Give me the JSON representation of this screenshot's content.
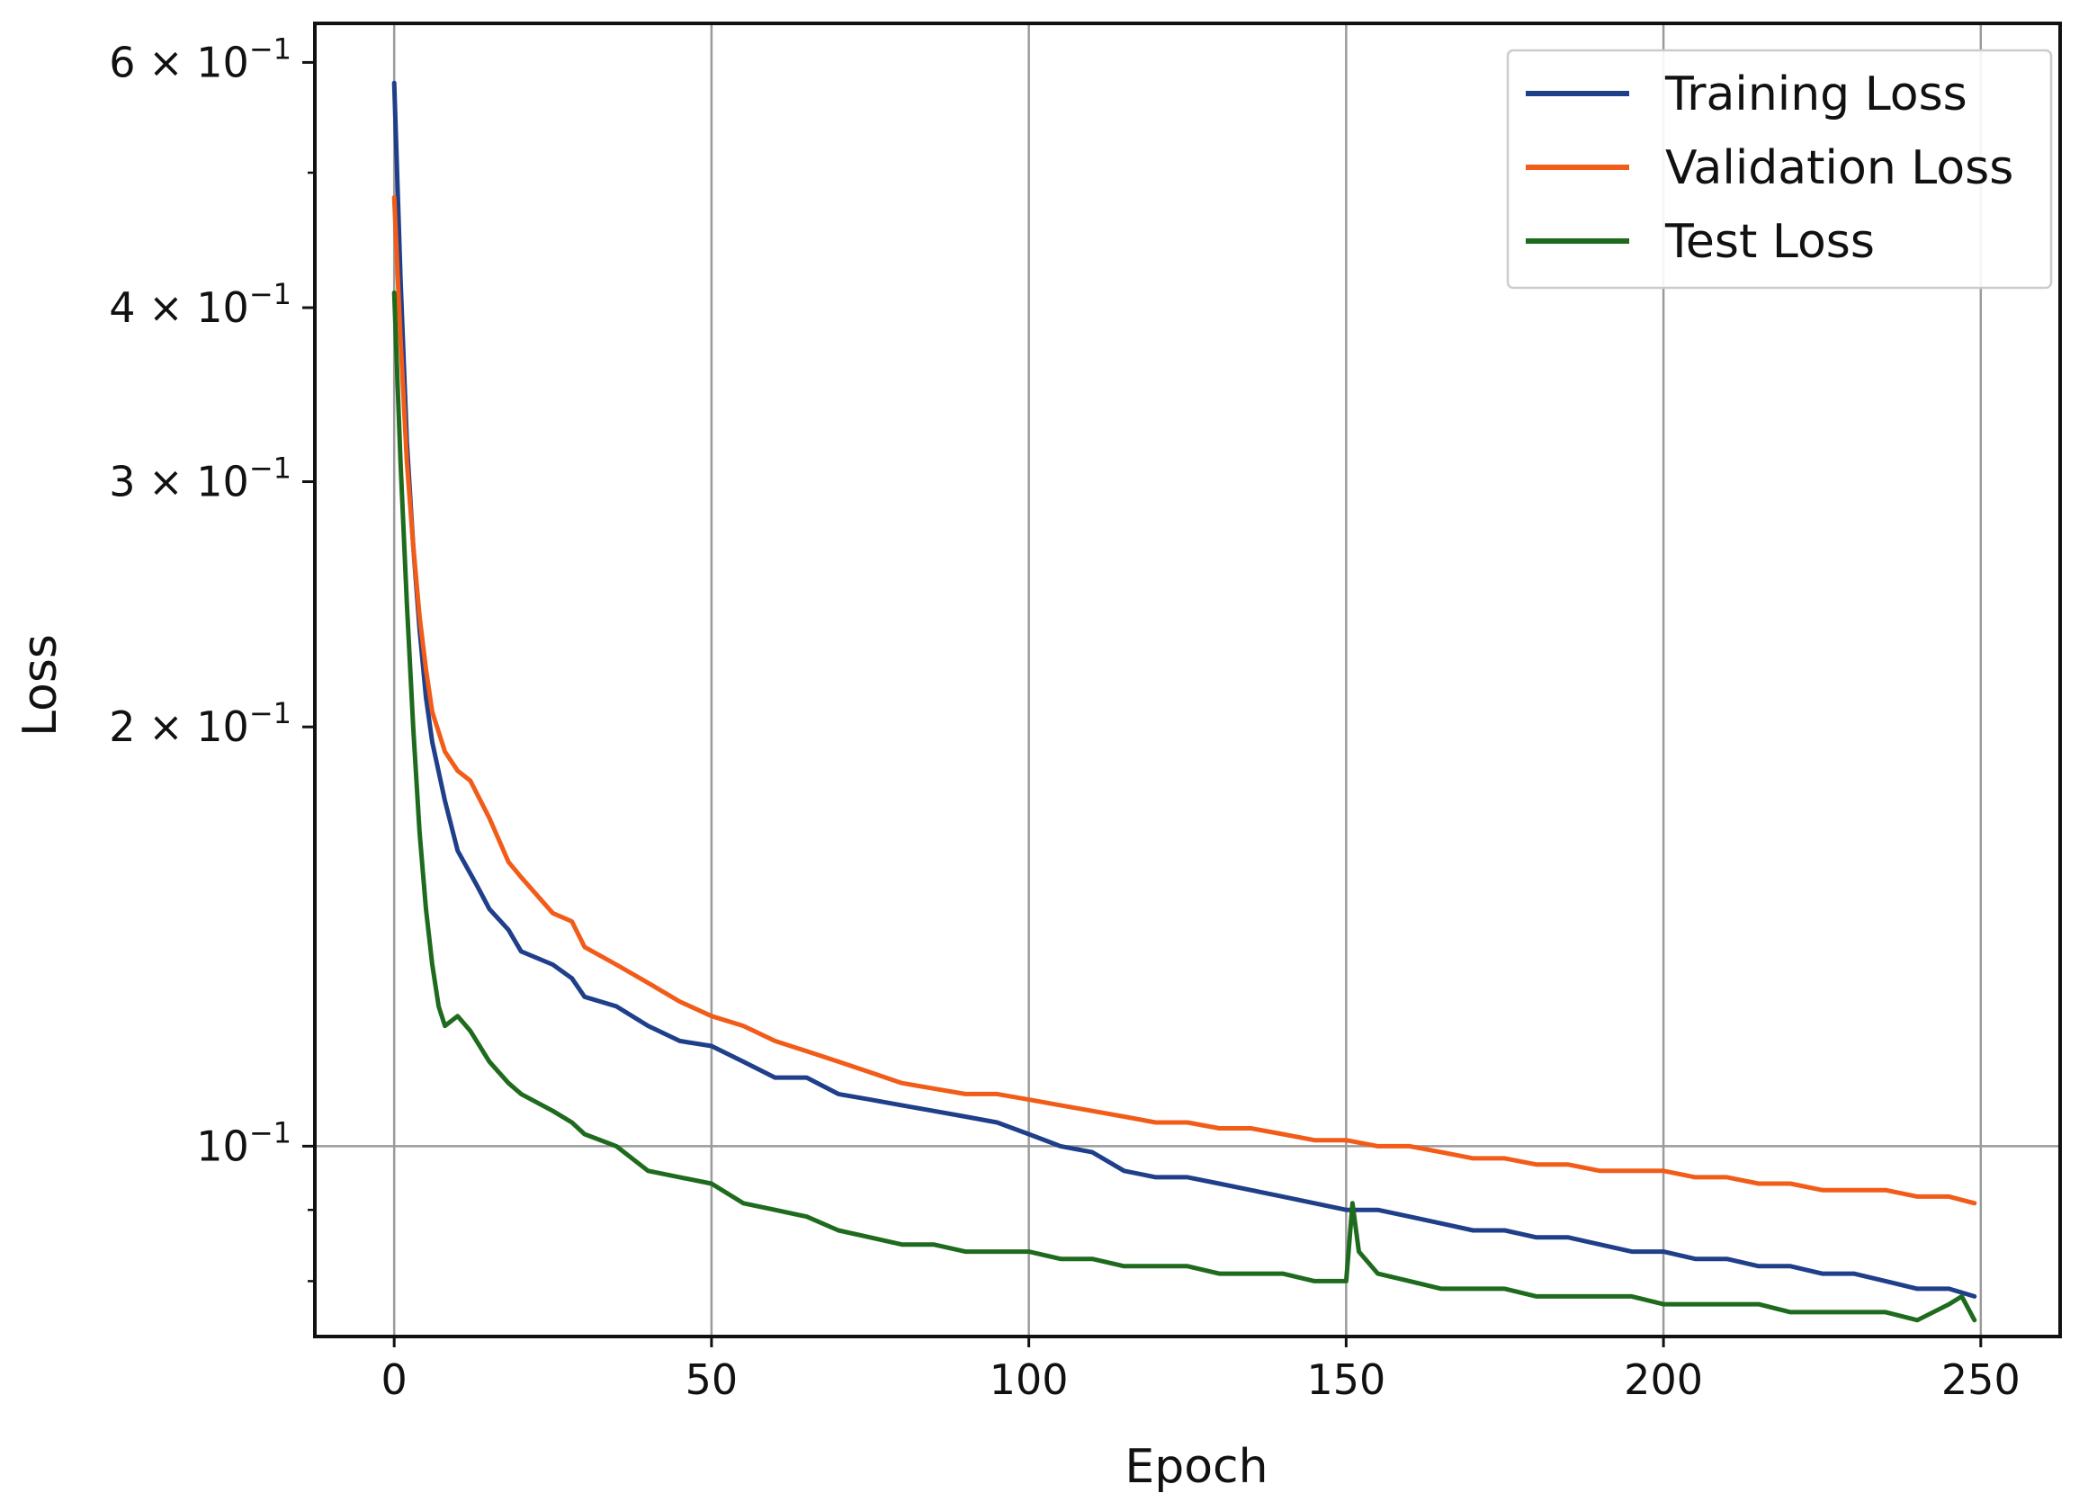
{
  "chart_data": {
    "type": "line",
    "title": "",
    "xlabel": "Epoch",
    "ylabel": "Loss",
    "xlim": [
      -12.5,
      262.5
    ],
    "ylim": [
      0.073,
      0.64
    ],
    "yscale": "log",
    "grid": true,
    "legend_position": "top-right",
    "x_ticks": [
      0,
      50,
      100,
      150,
      200,
      250
    ],
    "x_tick_labels": [
      "0",
      "50",
      "100",
      "150",
      "200",
      "250"
    ],
    "y_major_ticks": [
      {
        "value": 0.6,
        "coef": "6",
        "exp": "−1"
      },
      {
        "value": 0.4,
        "coef": "4",
        "exp": "−1"
      },
      {
        "value": 0.3,
        "coef": "3",
        "exp": "−1"
      },
      {
        "value": 0.2,
        "coef": "2",
        "exp": "−1"
      },
      {
        "value": 0.1,
        "coef": "",
        "exp": "−1"
      }
    ],
    "y_minor_ticks": [
      0.5,
      0.09,
      0.08
    ],
    "gridlines_y": [
      0.1
    ],
    "series": [
      {
        "name": "Training Loss",
        "color": "#1f3f8a",
        "points": [
          [
            0,
            0.58
          ],
          [
            1,
            0.42
          ],
          [
            2,
            0.32
          ],
          [
            3,
            0.27
          ],
          [
            4,
            0.235
          ],
          [
            5,
            0.21
          ],
          [
            6,
            0.195
          ],
          [
            8,
            0.177
          ],
          [
            10,
            0.163
          ],
          [
            13,
            0.154
          ],
          [
            15,
            0.148
          ],
          [
            18,
            0.143
          ],
          [
            20,
            0.138
          ],
          [
            25,
            0.135
          ],
          [
            28,
            0.132
          ],
          [
            30,
            0.128
          ],
          [
            35,
            0.126
          ],
          [
            40,
            0.122
          ],
          [
            45,
            0.119
          ],
          [
            50,
            0.118
          ],
          [
            55,
            0.115
          ],
          [
            60,
            0.112
          ],
          [
            65,
            0.112
          ],
          [
            70,
            0.109
          ],
          [
            75,
            0.108
          ],
          [
            80,
            0.107
          ],
          [
            85,
            0.106
          ],
          [
            90,
            0.105
          ],
          [
            95,
            0.104
          ],
          [
            100,
            0.102
          ],
          [
            105,
            0.1
          ],
          [
            110,
            0.099
          ],
          [
            115,
            0.096
          ],
          [
            120,
            0.095
          ],
          [
            125,
            0.095
          ],
          [
            130,
            0.094
          ],
          [
            135,
            0.093
          ],
          [
            140,
            0.092
          ],
          [
            145,
            0.091
          ],
          [
            150,
            0.09
          ],
          [
            155,
            0.09
          ],
          [
            160,
            0.089
          ],
          [
            165,
            0.088
          ],
          [
            170,
            0.087
          ],
          [
            175,
            0.087
          ],
          [
            180,
            0.086
          ],
          [
            185,
            0.086
          ],
          [
            190,
            0.085
          ],
          [
            195,
            0.084
          ],
          [
            200,
            0.084
          ],
          [
            205,
            0.083
          ],
          [
            210,
            0.083
          ],
          [
            215,
            0.082
          ],
          [
            220,
            0.082
          ],
          [
            225,
            0.081
          ],
          [
            230,
            0.081
          ],
          [
            235,
            0.08
          ],
          [
            240,
            0.079
          ],
          [
            245,
            0.079
          ],
          [
            249,
            0.078
          ]
        ]
      },
      {
        "name": "Validation Loss",
        "color": "#f25c19",
        "points": [
          [
            0,
            0.48
          ],
          [
            1,
            0.38
          ],
          [
            2,
            0.31
          ],
          [
            3,
            0.27
          ],
          [
            4,
            0.24
          ],
          [
            5,
            0.22
          ],
          [
            6,
            0.205
          ],
          [
            8,
            0.192
          ],
          [
            10,
            0.186
          ],
          [
            12,
            0.183
          ],
          [
            15,
            0.172
          ],
          [
            18,
            0.16
          ],
          [
            20,
            0.156
          ],
          [
            25,
            0.147
          ],
          [
            28,
            0.145
          ],
          [
            30,
            0.139
          ],
          [
            35,
            0.135
          ],
          [
            40,
            0.131
          ],
          [
            45,
            0.127
          ],
          [
            50,
            0.124
          ],
          [
            55,
            0.122
          ],
          [
            60,
            0.119
          ],
          [
            65,
            0.117
          ],
          [
            70,
            0.115
          ],
          [
            75,
            0.113
          ],
          [
            80,
            0.111
          ],
          [
            85,
            0.11
          ],
          [
            90,
            0.109
          ],
          [
            95,
            0.109
          ],
          [
            100,
            0.108
          ],
          [
            105,
            0.107
          ],
          [
            110,
            0.106
          ],
          [
            115,
            0.105
          ],
          [
            120,
            0.104
          ],
          [
            125,
            0.104
          ],
          [
            130,
            0.103
          ],
          [
            135,
            0.103
          ],
          [
            140,
            0.102
          ],
          [
            145,
            0.101
          ],
          [
            150,
            0.101
          ],
          [
            155,
            0.1
          ],
          [
            160,
            0.1
          ],
          [
            165,
            0.099
          ],
          [
            170,
            0.098
          ],
          [
            175,
            0.098
          ],
          [
            180,
            0.097
          ],
          [
            185,
            0.097
          ],
          [
            190,
            0.096
          ],
          [
            195,
            0.096
          ],
          [
            200,
            0.096
          ],
          [
            205,
            0.095
          ],
          [
            210,
            0.095
          ],
          [
            215,
            0.094
          ],
          [
            220,
            0.094
          ],
          [
            225,
            0.093
          ],
          [
            230,
            0.093
          ],
          [
            235,
            0.093
          ],
          [
            240,
            0.092
          ],
          [
            245,
            0.092
          ],
          [
            249,
            0.091
          ]
        ]
      },
      {
        "name": "Test Loss",
        "color": "#1e6b1e",
        "points": [
          [
            0,
            0.41
          ],
          [
            1,
            0.31
          ],
          [
            2,
            0.245
          ],
          [
            3,
            0.2
          ],
          [
            4,
            0.168
          ],
          [
            5,
            0.148
          ],
          [
            6,
            0.135
          ],
          [
            7,
            0.126
          ],
          [
            8,
            0.122
          ],
          [
            10,
            0.124
          ],
          [
            12,
            0.121
          ],
          [
            15,
            0.115
          ],
          [
            18,
            0.111
          ],
          [
            20,
            0.109
          ],
          [
            25,
            0.106
          ],
          [
            28,
            0.104
          ],
          [
            30,
            0.102
          ],
          [
            35,
            0.1
          ],
          [
            40,
            0.096
          ],
          [
            45,
            0.095
          ],
          [
            50,
            0.094
          ],
          [
            55,
            0.091
          ],
          [
            60,
            0.09
          ],
          [
            65,
            0.089
          ],
          [
            70,
            0.087
          ],
          [
            75,
            0.086
          ],
          [
            80,
            0.085
          ],
          [
            85,
            0.085
          ],
          [
            90,
            0.084
          ],
          [
            95,
            0.084
          ],
          [
            100,
            0.084
          ],
          [
            105,
            0.083
          ],
          [
            110,
            0.083
          ],
          [
            115,
            0.082
          ],
          [
            120,
            0.082
          ],
          [
            125,
            0.082
          ],
          [
            130,
            0.081
          ],
          [
            135,
            0.081
          ],
          [
            140,
            0.081
          ],
          [
            145,
            0.08
          ],
          [
            150,
            0.08
          ],
          [
            151,
            0.091
          ],
          [
            152,
            0.084
          ],
          [
            155,
            0.081
          ],
          [
            160,
            0.08
          ],
          [
            165,
            0.079
          ],
          [
            170,
            0.079
          ],
          [
            175,
            0.079
          ],
          [
            180,
            0.078
          ],
          [
            185,
            0.078
          ],
          [
            190,
            0.078
          ],
          [
            195,
            0.078
          ],
          [
            200,
            0.077
          ],
          [
            205,
            0.077
          ],
          [
            210,
            0.077
          ],
          [
            215,
            0.077
          ],
          [
            220,
            0.076
          ],
          [
            225,
            0.076
          ],
          [
            230,
            0.076
          ],
          [
            235,
            0.076
          ],
          [
            240,
            0.075
          ],
          [
            245,
            0.077
          ],
          [
            247,
            0.078
          ],
          [
            249,
            0.075
          ]
        ]
      }
    ]
  }
}
